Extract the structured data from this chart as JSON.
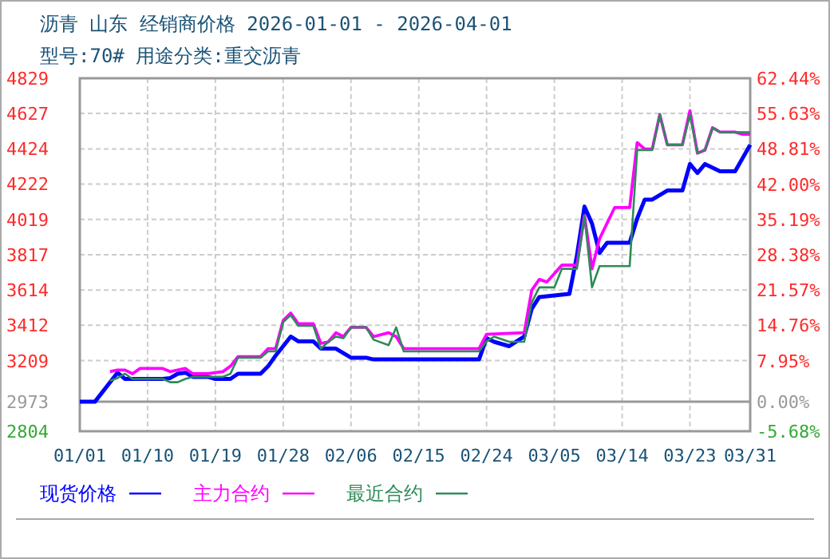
{
  "chart_data": {
    "type": "line",
    "title": "沥青  山东 经销商价格 2026-01-01 - 2026-04-01",
    "subtitle": "型号:70# 用途分类:重交沥青",
    "xlim": [
      "2026-01-01",
      "2026-03-31"
    ],
    "xticks": [
      {
        "value": "2026-01-01",
        "label": "01/01"
      },
      {
        "value": "2026-01-10",
        "label": "01/10"
      },
      {
        "value": "2026-01-19",
        "label": "01/19"
      },
      {
        "value": "2026-01-28",
        "label": "01/28"
      },
      {
        "value": "2026-02-06",
        "label": "02/06"
      },
      {
        "value": "2026-02-15",
        "label": "02/15"
      },
      {
        "value": "2026-02-24",
        "label": "02/24"
      },
      {
        "value": "2026-03-05",
        "label": "03/05"
      },
      {
        "value": "2026-03-14",
        "label": "03/14"
      },
      {
        "value": "2026-03-23",
        "label": "03/23"
      },
      {
        "value": "2026-03-31",
        "label": "03/31"
      }
    ],
    "ylim": [
      2804,
      4829
    ],
    "yticks": [
      2804,
      2973,
      3209,
      3412,
      3614,
      3817,
      4019,
      4222,
      4424,
      4627,
      4829
    ],
    "y2lim": [
      -5.68,
      62.44
    ],
    "y2ticks": [
      {
        "value": -5.68,
        "label": "-5.68%"
      },
      {
        "value": 0,
        "label": "0.00%"
      },
      {
        "value": 7.95,
        "label": "7.95%"
      },
      {
        "value": 14.76,
        "label": "14.76%"
      },
      {
        "value": 21.57,
        "label": "21.57%"
      },
      {
        "value": 28.38,
        "label": "28.38%"
      },
      {
        "value": 35.19,
        "label": "35.19%"
      },
      {
        "value": 42.0,
        "label": "42.00%"
      },
      {
        "value": 48.81,
        "label": "48.81%"
      },
      {
        "value": 55.63,
        "label": "55.63%"
      },
      {
        "value": 62.44,
        "label": "62.44%"
      }
    ],
    "grid": true,
    "legend": "bottom",
    "line_style": "solid",
    "ref_lines": [
      {
        "axis": "y",
        "value": 2973,
        "color": "#999999"
      }
    ],
    "series": [
      {
        "name": "现货价格",
        "color": "#0000ff",
        "x": [
          "2026-01-01",
          "2026-01-03",
          "2026-01-06",
          "2026-01-07",
          "2026-01-12",
          "2026-01-13",
          "2026-01-14",
          "2026-01-15",
          "2026-01-16",
          "2026-01-18",
          "2026-01-19",
          "2026-01-21",
          "2026-01-22",
          "2026-01-25",
          "2026-01-26",
          "2026-01-27",
          "2026-01-28",
          "2026-01-29",
          "2026-01-30",
          "2026-02-01",
          "2026-02-02",
          "2026-02-04",
          "2026-02-06",
          "2026-02-08",
          "2026-02-09",
          "2026-02-23",
          "2026-02-24",
          "2026-02-25",
          "2026-02-27",
          "2026-02-28",
          "2026-03-01",
          "2026-03-02",
          "2026-03-03",
          "2026-03-07",
          "2026-03-08",
          "2026-03-09",
          "2026-03-10",
          "2026-03-11",
          "2026-03-12",
          "2026-03-15",
          "2026-03-16",
          "2026-03-17",
          "2026-03-18",
          "2026-03-20",
          "2026-03-22",
          "2026-03-23",
          "2026-03-24",
          "2026-03-25",
          "2026-03-27",
          "2026-03-29",
          "2026-03-31"
        ],
        "values": [
          2973,
          2973,
          3140,
          3104,
          3104,
          3109,
          3134,
          3140,
          3116,
          3116,
          3104,
          3104,
          3134,
          3134,
          3177,
          3238,
          3292,
          3347,
          3320,
          3320,
          3278,
          3278,
          3226,
          3226,
          3216,
          3216,
          3338,
          3317,
          3292,
          3320,
          3347,
          3507,
          3574,
          3592,
          3812,
          4093,
          3995,
          3827,
          3885,
          3885,
          4025,
          4133,
          4133,
          4185,
          4185,
          4337,
          4286,
          4337,
          4295,
          4295,
          4447
        ]
      },
      {
        "name": "主力合约",
        "color": "#ff00ff",
        "x": [
          "2026-01-05",
          "2026-01-06",
          "2026-01-07",
          "2026-01-08",
          "2026-01-09",
          "2026-01-12",
          "2026-01-13",
          "2026-01-14",
          "2026-01-15",
          "2026-01-16",
          "2026-01-18",
          "2026-01-20",
          "2026-01-21",
          "2026-01-22",
          "2026-01-25",
          "2026-01-26",
          "2026-01-27",
          "2026-01-28",
          "2026-01-29",
          "2026-01-30",
          "2026-02-01",
          "2026-02-02",
          "2026-02-03",
          "2026-02-04",
          "2026-02-05",
          "2026-02-06",
          "2026-02-08",
          "2026-02-09",
          "2026-02-11",
          "2026-02-12",
          "2026-02-13",
          "2026-02-23",
          "2026-02-24",
          "2026-03-01",
          "2026-03-02",
          "2026-03-03",
          "2026-03-04",
          "2026-03-06",
          "2026-03-08",
          "2026-03-09",
          "2026-03-10",
          "2026-03-11",
          "2026-03-13",
          "2026-03-15",
          "2026-03-16",
          "2026-03-17",
          "2026-03-18",
          "2026-03-19",
          "2026-03-20",
          "2026-03-22",
          "2026-03-23",
          "2026-03-24",
          "2026-03-25",
          "2026-03-26",
          "2026-03-27",
          "2026-03-29",
          "2026-03-30",
          "2026-03-31"
        ],
        "values": [
          3146,
          3155,
          3155,
          3134,
          3164,
          3164,
          3146,
          3155,
          3164,
          3134,
          3134,
          3146,
          3177,
          3232,
          3232,
          3278,
          3278,
          3439,
          3482,
          3421,
          3421,
          3308,
          3317,
          3369,
          3347,
          3400,
          3400,
          3347,
          3369,
          3347,
          3278,
          3278,
          3360,
          3369,
          3613,
          3675,
          3660,
          3757,
          3757,
          4041,
          3736,
          3908,
          4087,
          4087,
          4460,
          4423,
          4423,
          4621,
          4447,
          4447,
          4643,
          4399,
          4417,
          4545,
          4520,
          4520,
          4508,
          4508
        ]
      },
      {
        "name": "最近合约",
        "color": "#2e8b57",
        "x": [
          "2026-01-05",
          "2026-01-06",
          "2026-01-07",
          "2026-01-08",
          "2026-01-12",
          "2026-01-13",
          "2026-01-14",
          "2026-01-15",
          "2026-01-16",
          "2026-01-20",
          "2026-01-21",
          "2026-01-22",
          "2026-01-25",
          "2026-01-26",
          "2026-01-27",
          "2026-01-28",
          "2026-01-29",
          "2026-01-30",
          "2026-02-01",
          "2026-02-02",
          "2026-02-03",
          "2026-02-04",
          "2026-02-05",
          "2026-02-06",
          "2026-02-08",
          "2026-02-09",
          "2026-02-11",
          "2026-02-12",
          "2026-02-13",
          "2026-02-23",
          "2026-02-24",
          "2026-02-25",
          "2026-02-27",
          "2026-03-01",
          "2026-03-02",
          "2026-03-03",
          "2026-03-05",
          "2026-03-06",
          "2026-03-08",
          "2026-03-09",
          "2026-03-10",
          "2026-03-11",
          "2026-03-15",
          "2026-03-16",
          "2026-03-18",
          "2026-03-19",
          "2026-03-20",
          "2026-03-22",
          "2026-03-23",
          "2026-03-24",
          "2026-03-25",
          "2026-03-26",
          "2026-03-27",
          "2026-03-31"
        ],
        "values": [
          3094,
          3109,
          3134,
          3104,
          3104,
          3085,
          3085,
          3104,
          3116,
          3116,
          3134,
          3226,
          3226,
          3262,
          3262,
          3430,
          3470,
          3409,
          3409,
          3278,
          3317,
          3347,
          3338,
          3400,
          3400,
          3329,
          3298,
          3400,
          3262,
          3262,
          3320,
          3347,
          3317,
          3317,
          3543,
          3629,
          3629,
          3736,
          3736,
          4041,
          3629,
          3751,
          3751,
          4417,
          4417,
          4621,
          4447,
          4447,
          4621,
          4399,
          4417,
          4545,
          4520,
          4520
        ]
      }
    ]
  }
}
